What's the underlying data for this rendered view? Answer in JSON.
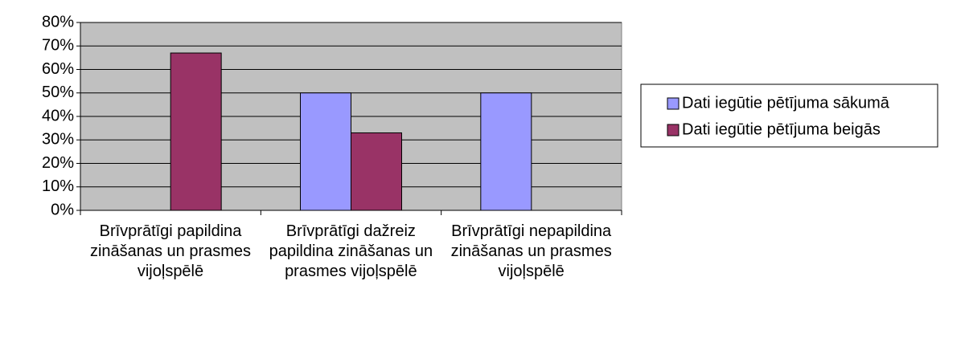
{
  "chart_data": {
    "type": "bar",
    "categories": [
      "Brīvprātīgi papildina zināšanas un prasmes vijoļspēlē",
      "Brīvprātīgi dažreiz papildina zināšanas un prasmes vijoļspēlē",
      "Brīvprātīgi nepapildina zināšanas un prasmes vijoļspēlē"
    ],
    "series": [
      {
        "name": "Dati iegūtie pētījuma sākumā",
        "color": "#9999ff",
        "values": [
          0,
          50,
          50
        ]
      },
      {
        "name": "Dati iegūtie pētījuma beigās",
        "color": "#993366",
        "values": [
          67,
          33,
          0
        ]
      }
    ],
    "ylim": [
      0,
      80
    ],
    "yticks": [
      {
        "value": 0,
        "label": "0%"
      },
      {
        "value": 10,
        "label": "10%"
      },
      {
        "value": 20,
        "label": "20%"
      },
      {
        "value": 30,
        "label": "30%"
      },
      {
        "value": 40,
        "label": "40%"
      },
      {
        "value": 50,
        "label": "50%"
      },
      {
        "value": 60,
        "label": "60%"
      },
      {
        "value": 70,
        "label": "70%"
      },
      {
        "value": 80,
        "label": "80%"
      }
    ],
    "grid": true,
    "legend": "right",
    "plot_background": "#c0c0c0"
  }
}
